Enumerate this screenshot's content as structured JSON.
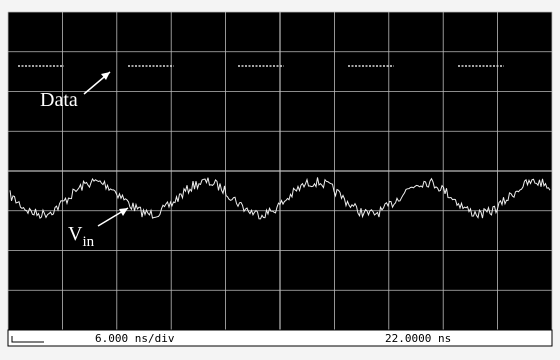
{
  "labels": {
    "data": "Data",
    "vin_main": "V",
    "vin_sub": "in"
  },
  "status": {
    "timebase": "6.000 ns/div",
    "position": "22.0000 ns"
  }
}
